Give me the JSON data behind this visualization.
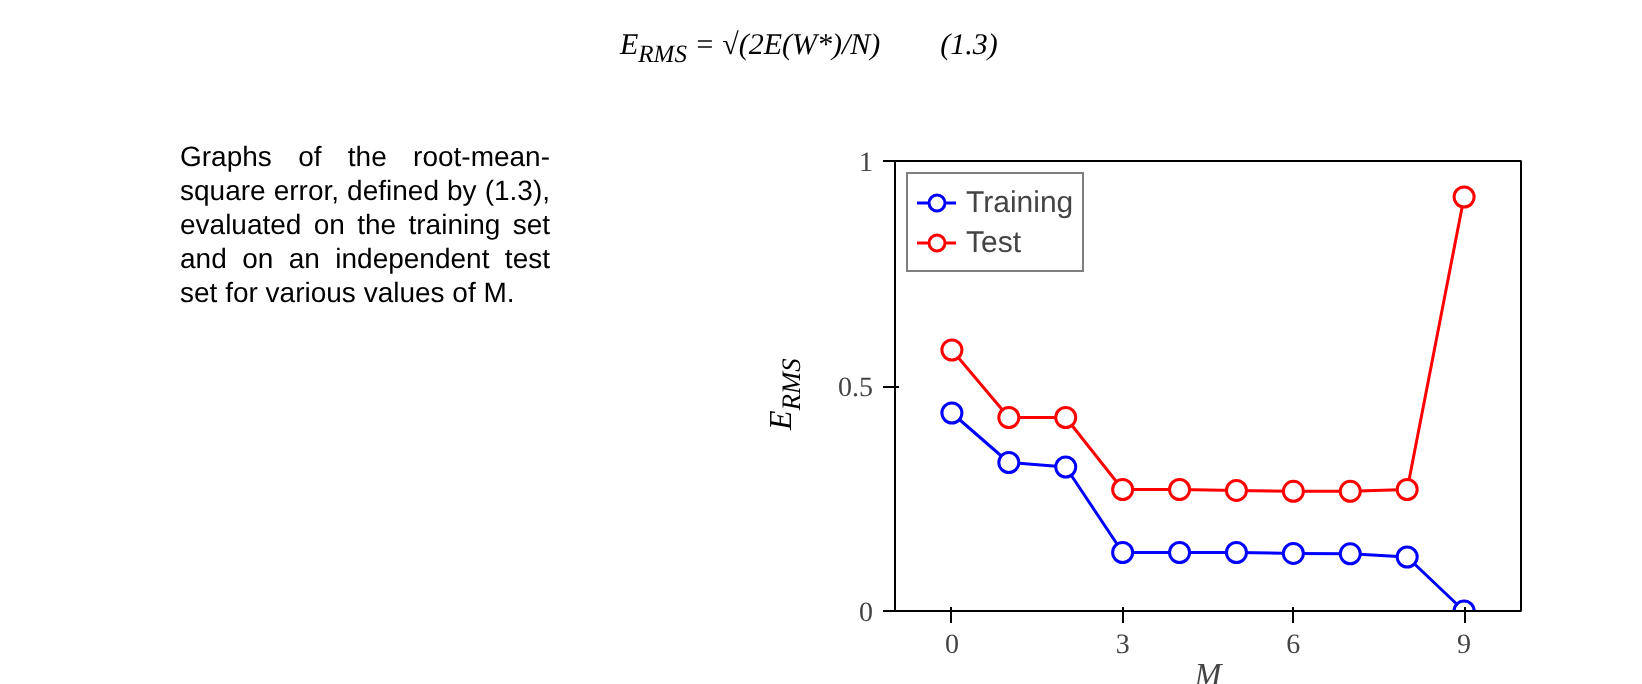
{
  "chart_data": {
    "type": "line",
    "xlabel": "M",
    "ylabel": "E$_{RMS}$",
    "annotations": [
      "E$_{RMS}$ = √(2E(W*)/N)        (1.3)",
      "Graphs of the root-mean-square error, defined by (1.3), evaluated on the training set and on an independent test set for various values of M."
    ],
    "x": [
      0,
      1,
      2,
      3,
      4,
      5,
      6,
      7,
      8,
      9
    ],
    "series": [
      {
        "name": "Training",
        "color": "#0000ff",
        "values": [
          0.44,
          0.33,
          0.32,
          0.13,
          0.13,
          0.13,
          0.128,
          0.127,
          0.12,
          0
        ]
      },
      {
        "name": "Test",
        "color": "#ff0000",
        "values": [
          0.58,
          0.43,
          0.43,
          0.27,
          0.27,
          0.268,
          0.266,
          0.266,
          0.27,
          0.92
        ]
      }
    ],
    "xlim": [
      -1,
      10
    ],
    "ylim": [
      0,
      1
    ],
    "xticks": [
      0,
      3,
      6,
      9
    ],
    "yticks": [
      0,
      0.5,
      1
    ],
    "grid": false,
    "legend": "top left",
    "marker": "circle",
    "line_style": "solid"
  }
}
